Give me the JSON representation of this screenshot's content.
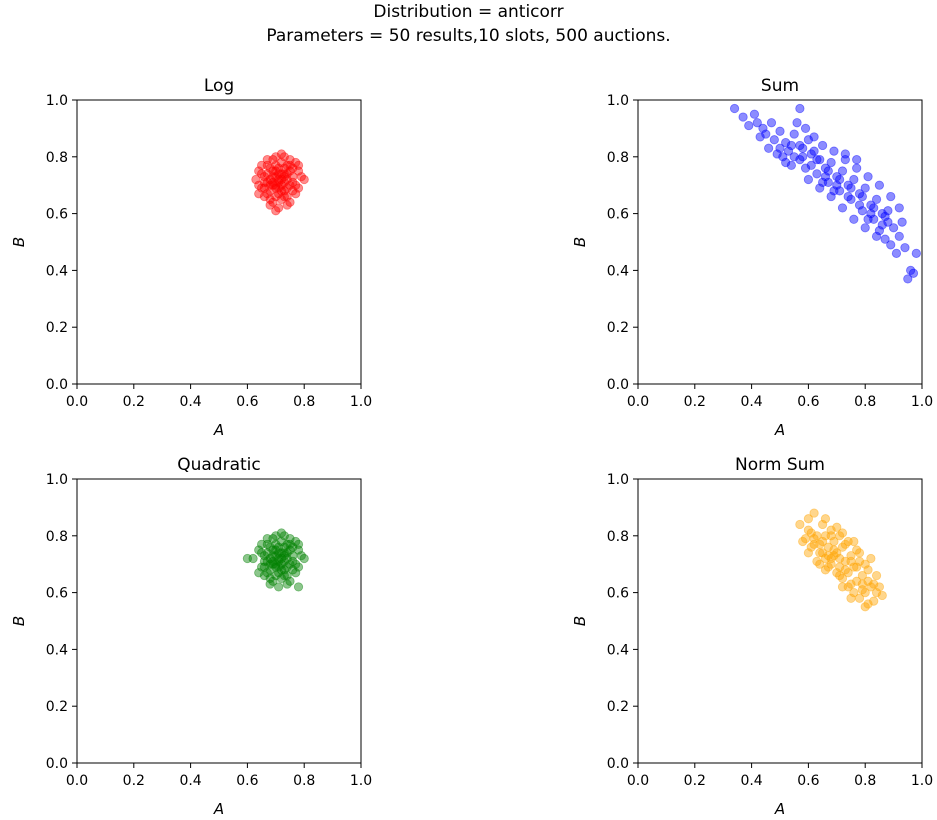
{
  "figure": {
    "title_line1": "Distribution = anticorr",
    "title_line2": "Parameters = 50 results,10 slots, 500 auctions."
  },
  "chart_data": [
    {
      "type": "scatter",
      "title": "Log",
      "xlabel": "A",
      "ylabel": "B",
      "xlim": [
        0,
        1
      ],
      "ylim": [
        0,
        1
      ],
      "xticks": [
        "0.0",
        "0.2",
        "0.4",
        "0.6",
        "0.8",
        "1.0"
      ],
      "yticks": [
        "0.0",
        "0.2",
        "0.4",
        "0.6",
        "0.8",
        "1.0"
      ],
      "grid": false,
      "color": "#ff0000",
      "alpha": 0.45,
      "points": [
        [
          0.71,
          0.72
        ],
        [
          0.69,
          0.7
        ],
        [
          0.73,
          0.74
        ],
        [
          0.66,
          0.73
        ],
        [
          0.76,
          0.71
        ],
        [
          0.7,
          0.66
        ],
        [
          0.72,
          0.78
        ],
        [
          0.65,
          0.69
        ],
        [
          0.78,
          0.75
        ],
        [
          0.68,
          0.63
        ],
        [
          0.74,
          0.66
        ],
        [
          0.7,
          0.8
        ],
        [
          0.64,
          0.75
        ],
        [
          0.77,
          0.67
        ],
        [
          0.67,
          0.77
        ],
        [
          0.75,
          0.79
        ],
        [
          0.72,
          0.7
        ],
        [
          0.69,
          0.75
        ],
        [
          0.73,
          0.68
        ],
        [
          0.71,
          0.62
        ],
        [
          0.79,
          0.73
        ],
        [
          0.63,
          0.72
        ],
        [
          0.74,
          0.77
        ],
        [
          0.68,
          0.68
        ],
        [
          0.7,
          0.73
        ],
        [
          0.76,
          0.76
        ],
        [
          0.66,
          0.66
        ],
        [
          0.72,
          0.65
        ],
        [
          0.69,
          0.79
        ],
        [
          0.75,
          0.7
        ],
        [
          0.67,
          0.71
        ],
        [
          0.73,
          0.71
        ],
        [
          0.71,
          0.76
        ],
        [
          0.77,
          0.78
        ],
        [
          0.65,
          0.77
        ],
        [
          0.74,
          0.63
        ],
        [
          0.7,
          0.69
        ],
        [
          0.72,
          0.74
        ],
        [
          0.68,
          0.72
        ],
        [
          0.78,
          0.69
        ],
        [
          0.64,
          0.7
        ],
        [
          0.71,
          0.67
        ],
        [
          0.73,
          0.8
        ],
        [
          0.67,
          0.74
        ],
        [
          0.76,
          0.73
        ],
        [
          0.69,
          0.64
        ],
        [
          0.75,
          0.75
        ],
        [
          0.7,
          0.77
        ],
        [
          0.72,
          0.68
        ],
        [
          0.66,
          0.69
        ],
        [
          0.8,
          0.72
        ],
        [
          0.74,
          0.72
        ],
        [
          0.68,
          0.76
        ],
        [
          0.71,
          0.71
        ],
        [
          0.73,
          0.66
        ],
        [
          0.67,
          0.67
        ],
        [
          0.77,
          0.7
        ],
        [
          0.7,
          0.75
        ],
        [
          0.65,
          0.74
        ],
        [
          0.75,
          0.64
        ],
        [
          0.72,
          0.81
        ],
        [
          0.69,
          0.71
        ],
        [
          0.74,
          0.69
        ],
        [
          0.66,
          0.71
        ],
        [
          0.71,
          0.74
        ],
        [
          0.73,
          0.73
        ],
        [
          0.68,
          0.65
        ],
        [
          0.76,
          0.68
        ],
        [
          0.7,
          0.7
        ],
        [
          0.72,
          0.72
        ],
        [
          0.78,
          0.77
        ],
        [
          0.64,
          0.67
        ],
        [
          0.69,
          0.73
        ],
        [
          0.75,
          0.77
        ],
        [
          0.71,
          0.69
        ],
        [
          0.67,
          0.79
        ],
        [
          0.73,
          0.76
        ],
        [
          0.7,
          0.61
        ],
        [
          0.74,
          0.74
        ],
        [
          0.68,
          0.7
        ]
      ]
    },
    {
      "type": "scatter",
      "title": "Sum",
      "xlabel": "A",
      "ylabel": "B",
      "xlim": [
        0,
        1
      ],
      "ylim": [
        0,
        1
      ],
      "xticks": [
        "0.0",
        "0.2",
        "0.4",
        "0.6",
        "0.8",
        "1.0"
      ],
      "yticks": [
        "0.0",
        "0.2",
        "0.4",
        "0.6",
        "0.8",
        "1.0"
      ],
      "grid": false,
      "color": "#0000ff",
      "alpha": 0.45,
      "points": [
        [
          0.34,
          0.97
        ],
        [
          0.37,
          0.94
        ],
        [
          0.41,
          0.95
        ],
        [
          0.44,
          0.9
        ],
        [
          0.47,
          0.92
        ],
        [
          0.43,
          0.87
        ],
        [
          0.5,
          0.89
        ],
        [
          0.52,
          0.85
        ],
        [
          0.48,
          0.86
        ],
        [
          0.55,
          0.88
        ],
        [
          0.53,
          0.82
        ],
        [
          0.57,
          0.84
        ],
        [
          0.6,
          0.86
        ],
        [
          0.58,
          0.8
        ],
        [
          0.62,
          0.82
        ],
        [
          0.61,
          0.77
        ],
        [
          0.64,
          0.79
        ],
        [
          0.66,
          0.76
        ],
        [
          0.63,
          0.74
        ],
        [
          0.68,
          0.78
        ],
        [
          0.7,
          0.73
        ],
        [
          0.67,
          0.71
        ],
        [
          0.72,
          0.75
        ],
        [
          0.74,
          0.7
        ],
        [
          0.71,
          0.68
        ],
        [
          0.76,
          0.72
        ],
        [
          0.78,
          0.67
        ],
        [
          0.75,
          0.65
        ],
        [
          0.8,
          0.69
        ],
        [
          0.82,
          0.63
        ],
        [
          0.79,
          0.61
        ],
        [
          0.84,
          0.65
        ],
        [
          0.86,
          0.6
        ],
        [
          0.83,
          0.58
        ],
        [
          0.88,
          0.57
        ],
        [
          0.85,
          0.54
        ],
        [
          0.9,
          0.55
        ],
        [
          0.87,
          0.51
        ],
        [
          0.92,
          0.52
        ],
        [
          0.89,
          0.49
        ],
        [
          0.94,
          0.48
        ],
        [
          0.91,
          0.46
        ],
        [
          0.96,
          0.4
        ],
        [
          0.95,
          0.37
        ],
        [
          0.97,
          0.39
        ],
        [
          0.98,
          0.46
        ],
        [
          0.56,
          0.92
        ],
        [
          0.59,
          0.9
        ],
        [
          0.65,
          0.84
        ],
        [
          0.69,
          0.82
        ],
        [
          0.73,
          0.79
        ],
        [
          0.77,
          0.76
        ],
        [
          0.81,
          0.73
        ],
        [
          0.85,
          0.7
        ],
        [
          0.89,
          0.66
        ],
        [
          0.92,
          0.62
        ],
        [
          0.51,
          0.8
        ],
        [
          0.54,
          0.77
        ],
        [
          0.6,
          0.72
        ],
        [
          0.64,
          0.69
        ],
        [
          0.68,
          0.66
        ],
        [
          0.72,
          0.62
        ],
        [
          0.76,
          0.58
        ],
        [
          0.8,
          0.55
        ],
        [
          0.84,
          0.52
        ],
        [
          0.46,
          0.83
        ],
        [
          0.49,
          0.81
        ],
        [
          0.52,
          0.78
        ],
        [
          0.57,
          0.79
        ],
        [
          0.61,
          0.81
        ],
        [
          0.66,
          0.73
        ],
        [
          0.7,
          0.7
        ],
        [
          0.74,
          0.66
        ],
        [
          0.78,
          0.63
        ],
        [
          0.82,
          0.6
        ],
        [
          0.86,
          0.56
        ],
        [
          0.62,
          0.87
        ],
        [
          0.58,
          0.83
        ],
        [
          0.54,
          0.84
        ],
        [
          0.5,
          0.83
        ],
        [
          0.45,
          0.88
        ],
        [
          0.39,
          0.91
        ],
        [
          0.42,
          0.92
        ],
        [
          0.63,
          0.79
        ],
        [
          0.67,
          0.75
        ],
        [
          0.71,
          0.72
        ],
        [
          0.75,
          0.69
        ],
        [
          0.79,
          0.66
        ],
        [
          0.83,
          0.62
        ],
        [
          0.87,
          0.59
        ],
        [
          0.73,
          0.81
        ],
        [
          0.77,
          0.79
        ],
        [
          0.55,
          0.8
        ],
        [
          0.59,
          0.76
        ],
        [
          0.65,
          0.71
        ],
        [
          0.69,
          0.68
        ],
        [
          0.81,
          0.58
        ],
        [
          0.88,
          0.61
        ],
        [
          0.93,
          0.57
        ],
        [
          0.57,
          0.97
        ]
      ]
    },
    {
      "type": "scatter",
      "title": "Quadratic",
      "xlabel": "A",
      "ylabel": "B",
      "xlim": [
        0,
        1
      ],
      "ylim": [
        0,
        1
      ],
      "xticks": [
        "0.0",
        "0.2",
        "0.4",
        "0.6",
        "0.8",
        "1.0"
      ],
      "yticks": [
        "0.0",
        "0.2",
        "0.4",
        "0.6",
        "0.8",
        "1.0"
      ],
      "grid": false,
      "color": "#008000",
      "alpha": 0.45,
      "points": [
        [
          0.71,
          0.72
        ],
        [
          0.69,
          0.7
        ],
        [
          0.73,
          0.74
        ],
        [
          0.66,
          0.73
        ],
        [
          0.76,
          0.71
        ],
        [
          0.7,
          0.66
        ],
        [
          0.72,
          0.78
        ],
        [
          0.65,
          0.69
        ],
        [
          0.78,
          0.75
        ],
        [
          0.68,
          0.63
        ],
        [
          0.74,
          0.66
        ],
        [
          0.7,
          0.8
        ],
        [
          0.64,
          0.75
        ],
        [
          0.77,
          0.67
        ],
        [
          0.67,
          0.77
        ],
        [
          0.75,
          0.79
        ],
        [
          0.72,
          0.7
        ],
        [
          0.69,
          0.75
        ],
        [
          0.73,
          0.68
        ],
        [
          0.71,
          0.62
        ],
        [
          0.79,
          0.73
        ],
        [
          0.62,
          0.72
        ],
        [
          0.74,
          0.77
        ],
        [
          0.68,
          0.68
        ],
        [
          0.7,
          0.73
        ],
        [
          0.76,
          0.76
        ],
        [
          0.66,
          0.66
        ],
        [
          0.72,
          0.65
        ],
        [
          0.69,
          0.79
        ],
        [
          0.75,
          0.7
        ],
        [
          0.67,
          0.71
        ],
        [
          0.73,
          0.71
        ],
        [
          0.71,
          0.76
        ],
        [
          0.77,
          0.78
        ],
        [
          0.65,
          0.77
        ],
        [
          0.74,
          0.63
        ],
        [
          0.7,
          0.69
        ],
        [
          0.72,
          0.74
        ],
        [
          0.68,
          0.72
        ],
        [
          0.78,
          0.69
        ],
        [
          0.6,
          0.72
        ],
        [
          0.71,
          0.67
        ],
        [
          0.73,
          0.8
        ],
        [
          0.67,
          0.74
        ],
        [
          0.76,
          0.73
        ],
        [
          0.69,
          0.64
        ],
        [
          0.75,
          0.75
        ],
        [
          0.7,
          0.77
        ],
        [
          0.72,
          0.68
        ],
        [
          0.66,
          0.69
        ],
        [
          0.8,
          0.72
        ],
        [
          0.74,
          0.72
        ],
        [
          0.68,
          0.76
        ],
        [
          0.71,
          0.71
        ],
        [
          0.73,
          0.66
        ],
        [
          0.67,
          0.67
        ],
        [
          0.77,
          0.7
        ],
        [
          0.7,
          0.75
        ],
        [
          0.65,
          0.74
        ],
        [
          0.75,
          0.64
        ],
        [
          0.72,
          0.81
        ],
        [
          0.69,
          0.71
        ],
        [
          0.74,
          0.69
        ],
        [
          0.66,
          0.71
        ],
        [
          0.71,
          0.74
        ],
        [
          0.73,
          0.73
        ],
        [
          0.68,
          0.65
        ],
        [
          0.76,
          0.68
        ],
        [
          0.7,
          0.7
        ],
        [
          0.72,
          0.72
        ],
        [
          0.78,
          0.77
        ],
        [
          0.64,
          0.67
        ],
        [
          0.69,
          0.73
        ],
        [
          0.75,
          0.77
        ],
        [
          0.71,
          0.69
        ],
        [
          0.67,
          0.79
        ],
        [
          0.73,
          0.76
        ],
        [
          0.78,
          0.62
        ],
        [
          0.74,
          0.74
        ],
        [
          0.68,
          0.7
        ]
      ]
    },
    {
      "type": "scatter",
      "title": "Norm Sum",
      "xlabel": "A",
      "ylabel": "B",
      "xlim": [
        0,
        1
      ],
      "ylim": [
        0,
        1
      ],
      "xticks": [
        "0.0",
        "0.2",
        "0.4",
        "0.6",
        "0.8",
        "1.0"
      ],
      "yticks": [
        "0.0",
        "0.2",
        "0.4",
        "0.6",
        "0.8",
        "1.0"
      ],
      "grid": false,
      "color": "#ffa500",
      "alpha": 0.45,
      "points": [
        [
          0.57,
          0.84
        ],
        [
          0.6,
          0.82
        ],
        [
          0.62,
          0.88
        ],
        [
          0.59,
          0.79
        ],
        [
          0.63,
          0.8
        ],
        [
          0.65,
          0.84
        ],
        [
          0.61,
          0.76
        ],
        [
          0.64,
          0.77
        ],
        [
          0.66,
          0.8
        ],
        [
          0.68,
          0.82
        ],
        [
          0.65,
          0.74
        ],
        [
          0.67,
          0.76
        ],
        [
          0.69,
          0.78
        ],
        [
          0.71,
          0.8
        ],
        [
          0.68,
          0.72
        ],
        [
          0.7,
          0.74
        ],
        [
          0.72,
          0.76
        ],
        [
          0.74,
          0.78
        ],
        [
          0.71,
          0.69
        ],
        [
          0.73,
          0.71
        ],
        [
          0.75,
          0.73
        ],
        [
          0.77,
          0.75
        ],
        [
          0.74,
          0.67
        ],
        [
          0.76,
          0.69
        ],
        [
          0.78,
          0.71
        ],
        [
          0.8,
          0.7
        ],
        [
          0.77,
          0.64
        ],
        [
          0.79,
          0.66
        ],
        [
          0.81,
          0.68
        ],
        [
          0.83,
          0.63
        ],
        [
          0.8,
          0.6
        ],
        [
          0.82,
          0.62
        ],
        [
          0.84,
          0.6
        ],
        [
          0.86,
          0.59
        ],
        [
          0.81,
          0.56
        ],
        [
          0.83,
          0.57
        ],
        [
          0.78,
          0.58
        ],
        [
          0.76,
          0.6
        ],
        [
          0.74,
          0.62
        ],
        [
          0.72,
          0.65
        ],
        [
          0.7,
          0.67
        ],
        [
          0.68,
          0.7
        ],
        [
          0.66,
          0.72
        ],
        [
          0.64,
          0.74
        ],
        [
          0.62,
          0.77
        ],
        [
          0.6,
          0.74
        ],
        [
          0.63,
          0.71
        ],
        [
          0.67,
          0.69
        ],
        [
          0.71,
          0.66
        ],
        [
          0.75,
          0.63
        ],
        [
          0.79,
          0.61
        ],
        [
          0.73,
          0.77
        ],
        [
          0.69,
          0.75
        ],
        [
          0.65,
          0.78
        ],
        [
          0.61,
          0.81
        ],
        [
          0.58,
          0.78
        ],
        [
          0.66,
          0.86
        ],
        [
          0.7,
          0.83
        ],
        [
          0.72,
          0.81
        ],
        [
          0.76,
          0.78
        ],
        [
          0.78,
          0.74
        ],
        [
          0.82,
          0.72
        ],
        [
          0.84,
          0.66
        ],
        [
          0.85,
          0.62
        ],
        [
          0.73,
          0.68
        ],
        [
          0.69,
          0.73
        ],
        [
          0.75,
          0.71
        ],
        [
          0.77,
          0.69
        ],
        [
          0.71,
          0.72
        ],
        [
          0.67,
          0.73
        ],
        [
          0.64,
          0.7
        ],
        [
          0.79,
          0.63
        ],
        [
          0.81,
          0.64
        ],
        [
          0.72,
          0.62
        ],
        [
          0.75,
          0.58
        ],
        [
          0.66,
          0.68
        ],
        [
          0.62,
          0.79
        ],
        [
          0.68,
          0.8
        ],
        [
          0.8,
          0.55
        ],
        [
          0.6,
          0.86
        ]
      ]
    }
  ]
}
